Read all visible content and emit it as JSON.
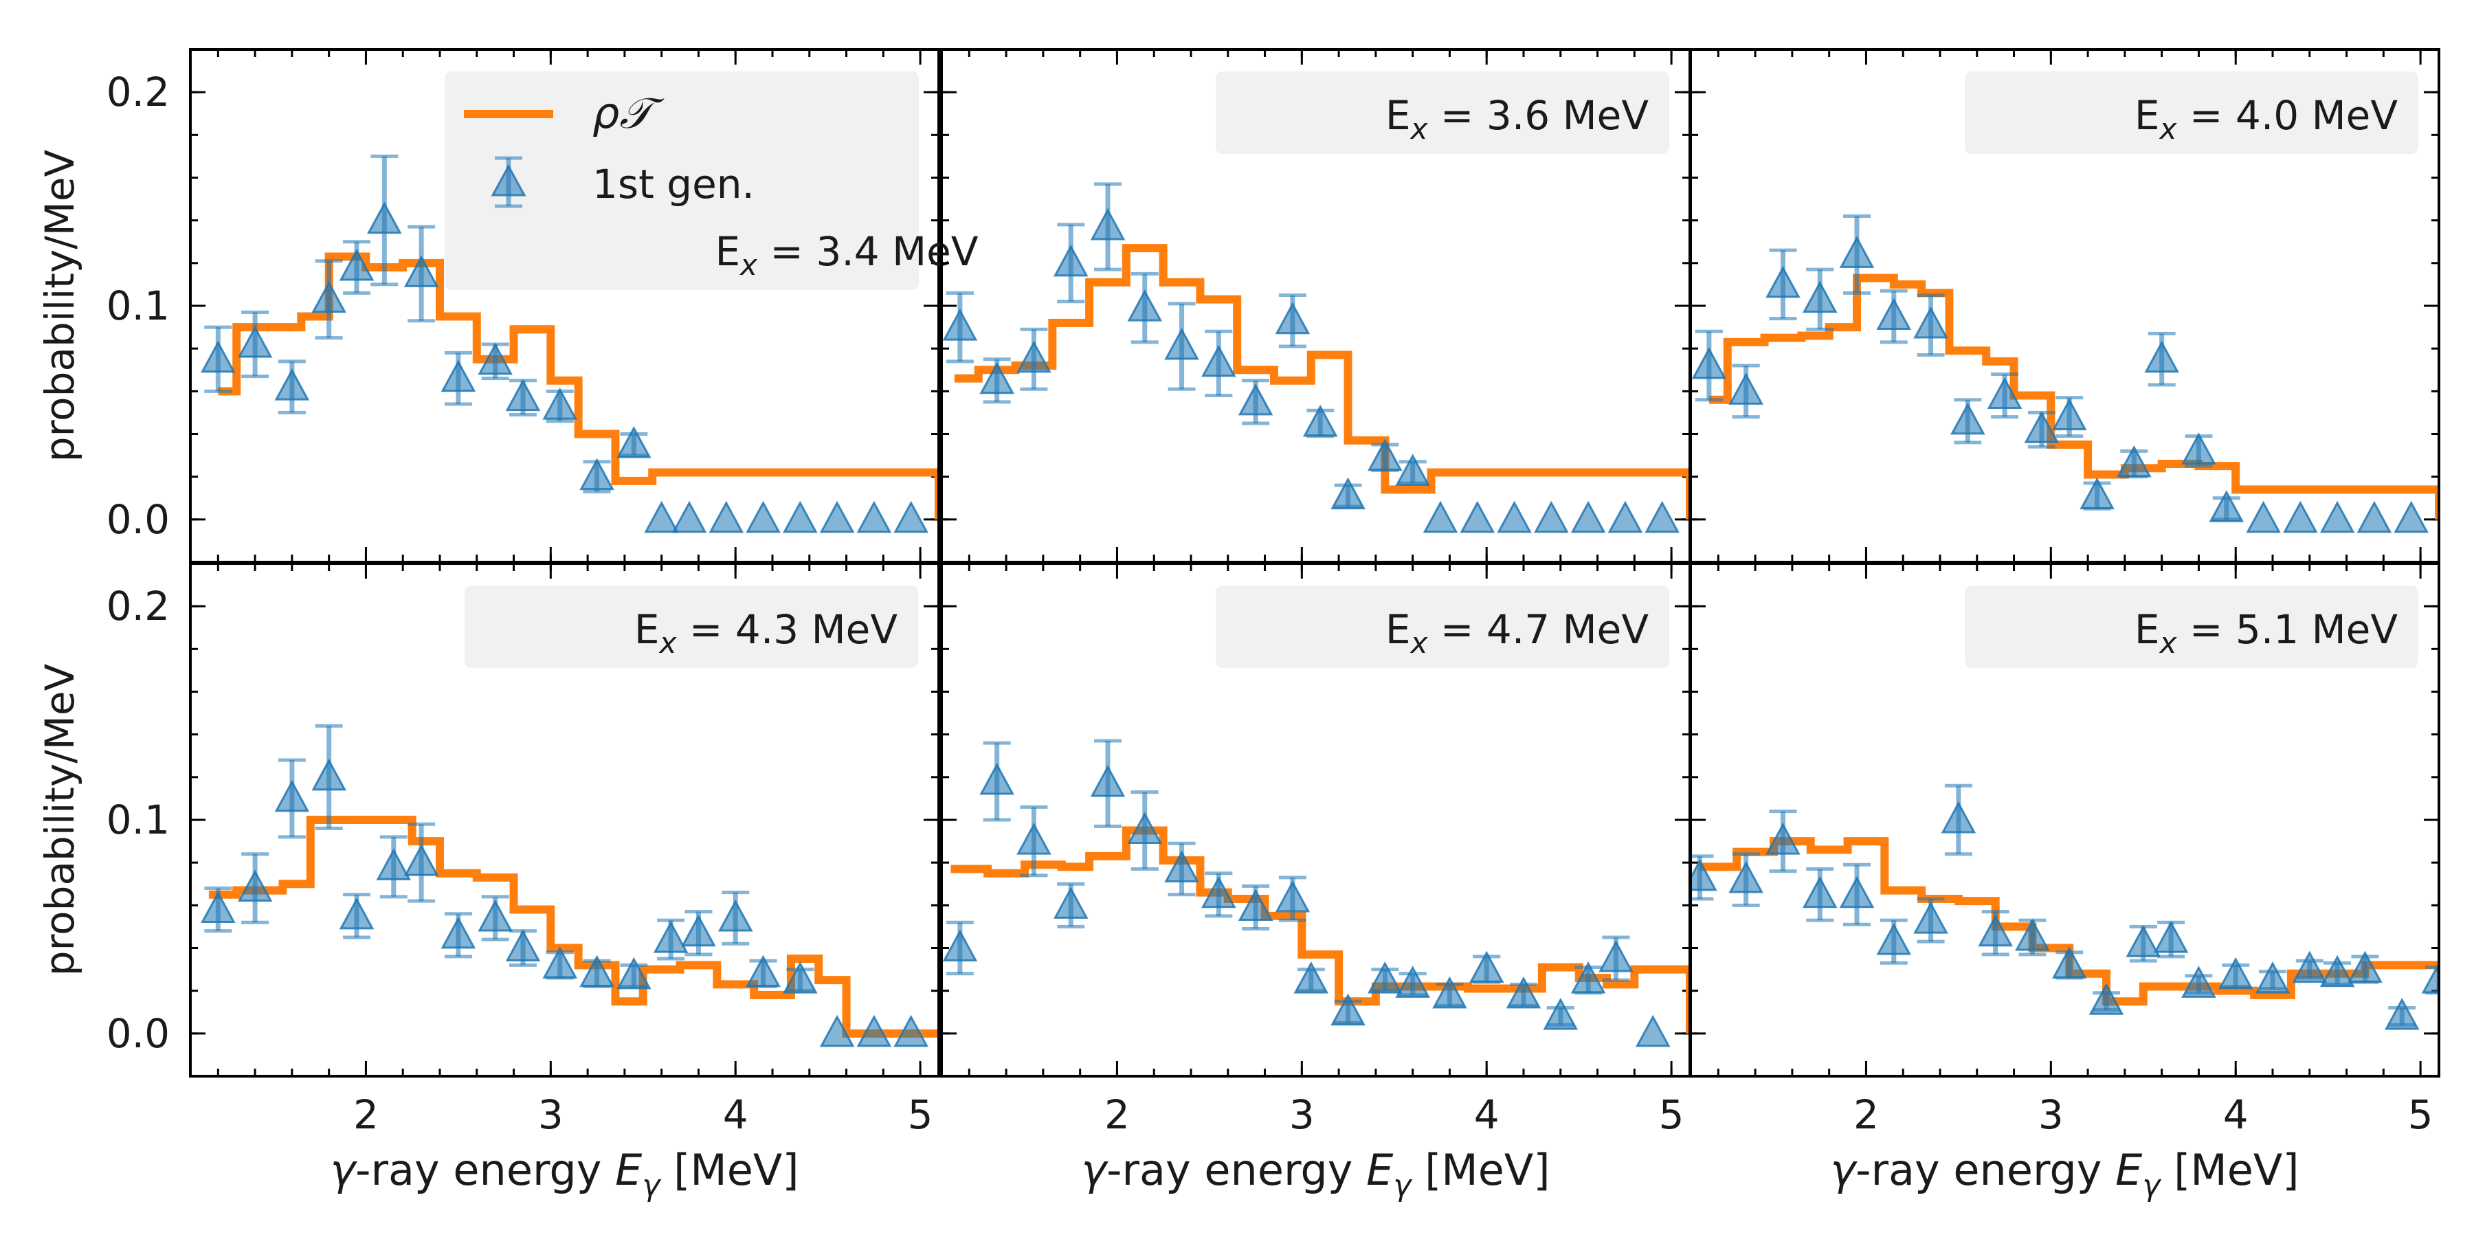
{
  "figure": {
    "colors": {
      "model": "#ff7f0e",
      "data": "#1f77b4",
      "legend_bg": "#f0f0f0",
      "axis": "#000000"
    },
    "ylabel_parts": [
      "probability/MeV"
    ],
    "xlabel_parts": [
      "γ",
      "-ray energy ",
      "E",
      "γ",
      " [MeV]"
    ],
    "legend": {
      "model_parts": [
        "ρ",
        "𝒯"
      ],
      "data_label": "1st gen."
    }
  },
  "chart_data": [
    {
      "type": "line",
      "ex_value": "3.4 MeV",
      "xlim": [
        1.05,
        5.1
      ],
      "ylim": [
        -0.02,
        0.22
      ],
      "xticks": [
        2,
        3,
        4,
        5
      ],
      "yticks": [
        0.0,
        0.1,
        0.2
      ],
      "ytick_labels": [
        "0.0",
        "0.1",
        "0.2"
      ],
      "series": [
        {
          "name": "ρ𝒯",
          "kind": "step",
          "x": [
            1.2,
            1.3,
            1.65,
            1.8,
            2.0,
            2.2,
            2.4,
            2.6,
            2.8,
            3.0,
            3.15,
            3.35,
            3.55,
            5.1
          ],
          "y": [
            0.06,
            0.09,
            0.095,
            0.123,
            0.118,
            0.12,
            0.095,
            0.075,
            0.089,
            0.065,
            0.04,
            0.018,
            0.022,
            0.0
          ]
        },
        {
          "name": "1st gen.",
          "kind": "errorbar",
          "x": [
            1.2,
            1.4,
            1.6,
            1.8,
            1.95,
            2.1,
            2.3,
            2.5,
            2.7,
            2.85,
            3.05,
            3.25,
            3.45,
            3.6,
            3.75,
            3.95,
            4.15,
            4.35,
            4.55,
            4.75,
            4.95
          ],
          "y": [
            0.075,
            0.082,
            0.062,
            0.103,
            0.118,
            0.14,
            0.115,
            0.066,
            0.074,
            0.057,
            0.053,
            0.02,
            0.035,
            0.0,
            0.0,
            0.0,
            0.0,
            0.0,
            0.0,
            0.0,
            0.0
          ],
          "err": [
            0.015,
            0.015,
            0.012,
            0.018,
            0.012,
            0.03,
            0.022,
            0.012,
            0.008,
            0.008,
            0.007,
            0.007,
            0.005,
            0,
            0,
            0,
            0,
            0,
            0,
            0,
            0
          ]
        }
      ]
    },
    {
      "type": "line",
      "ex_value": "3.6 MeV",
      "xlim": [
        1.05,
        5.1
      ],
      "ylim": [
        -0.02,
        0.22
      ],
      "xticks": [
        2,
        3,
        4,
        5
      ],
      "yticks": [
        0.0,
        0.1,
        0.2
      ],
      "ytick_labels": [
        "0.0",
        "0.1",
        "0.2"
      ],
      "series": [
        {
          "name": "ρ𝒯",
          "kind": "step",
          "x": [
            1.12,
            1.25,
            1.45,
            1.65,
            1.85,
            2.05,
            2.25,
            2.45,
            2.65,
            2.85,
            3.05,
            3.25,
            3.45,
            3.7,
            5.1
          ],
          "y": [
            0.066,
            0.07,
            0.072,
            0.092,
            0.111,
            0.127,
            0.111,
            0.103,
            0.07,
            0.065,
            0.077,
            0.037,
            0.014,
            0.022,
            0.0
          ]
        },
        {
          "name": "1st gen.",
          "kind": "errorbar",
          "x": [
            1.15,
            1.35,
            1.55,
            1.75,
            1.95,
            2.15,
            2.35,
            2.55,
            2.75,
            2.95,
            3.1,
            3.25,
            3.45,
            3.6,
            3.75,
            3.95,
            4.15,
            4.35,
            4.55,
            4.75,
            4.95
          ],
          "y": [
            0.09,
            0.065,
            0.075,
            0.12,
            0.137,
            0.099,
            0.081,
            0.073,
            0.055,
            0.093,
            0.045,
            0.011,
            0.029,
            0.022,
            0.0,
            0.0,
            0.0,
            0.0,
            0.0,
            0.0,
            0.0
          ],
          "err": [
            0.016,
            0.01,
            0.014,
            0.018,
            0.02,
            0.016,
            0.02,
            0.015,
            0.01,
            0.012,
            0.006,
            0.005,
            0.006,
            0.005,
            0,
            0,
            0,
            0,
            0,
            0,
            0
          ]
        }
      ]
    },
    {
      "type": "line",
      "ex_value": "4.0 MeV",
      "xlim": [
        1.05,
        5.1
      ],
      "ylim": [
        -0.02,
        0.22
      ],
      "xticks": [
        2,
        3,
        4,
        5
      ],
      "yticks": [
        0.0,
        0.1,
        0.2
      ],
      "ytick_labels": [
        "0.0",
        "0.1",
        "0.2"
      ],
      "series": [
        {
          "name": "ρ𝒯",
          "kind": "step",
          "x": [
            1.15,
            1.25,
            1.45,
            1.65,
            1.8,
            1.95,
            2.15,
            2.3,
            2.45,
            2.65,
            2.8,
            3.0,
            3.2,
            3.4,
            3.6,
            3.8,
            4.0,
            5.1
          ],
          "y": [
            0.056,
            0.083,
            0.085,
            0.086,
            0.09,
            0.113,
            0.11,
            0.106,
            0.079,
            0.074,
            0.058,
            0.035,
            0.021,
            0.024,
            0.026,
            0.025,
            0.014,
            0.0
          ]
        },
        {
          "name": "1st gen.",
          "kind": "errorbar",
          "x": [
            1.15,
            1.35,
            1.55,
            1.75,
            1.95,
            2.15,
            2.35,
            2.55,
            2.75,
            2.95,
            3.1,
            3.25,
            3.45,
            3.6,
            3.8,
            3.95,
            4.15,
            4.35,
            4.55,
            4.75,
            4.95
          ],
          "y": [
            0.072,
            0.06,
            0.11,
            0.103,
            0.124,
            0.095,
            0.091,
            0.046,
            0.058,
            0.042,
            0.048,
            0.011,
            0.026,
            0.075,
            0.032,
            0.005,
            0.0,
            0.0,
            0.0,
            0.0,
            0.0
          ],
          "err": [
            0.016,
            0.012,
            0.016,
            0.014,
            0.018,
            0.012,
            0.014,
            0.01,
            0.01,
            0.008,
            0.009,
            0.006,
            0.006,
            0.012,
            0.007,
            0.005,
            0,
            0,
            0,
            0,
            0
          ]
        }
      ]
    },
    {
      "type": "line",
      "ex_value": "4.3 MeV",
      "xlim": [
        1.05,
        5.1
      ],
      "ylim": [
        -0.02,
        0.22
      ],
      "xticks": [
        2,
        3,
        4,
        5
      ],
      "yticks": [
        0.0,
        0.1,
        0.2
      ],
      "ytick_labels": [
        "0.0",
        "0.1",
        "0.2"
      ],
      "series": [
        {
          "name": "ρ𝒯",
          "kind": "step",
          "x": [
            1.15,
            1.3,
            1.55,
            1.7,
            1.9,
            2.05,
            2.25,
            2.4,
            2.6,
            2.8,
            3.0,
            3.15,
            3.35,
            3.5,
            3.7,
            3.9,
            4.1,
            4.3,
            4.45,
            4.6,
            5.1
          ],
          "y": [
            0.065,
            0.067,
            0.07,
            0.1,
            0.1,
            0.1,
            0.09,
            0.075,
            0.073,
            0.058,
            0.04,
            0.032,
            0.015,
            0.03,
            0.032,
            0.023,
            0.018,
            0.035,
            0.025,
            0.0,
            0.0
          ]
        },
        {
          "name": "1st gen.",
          "kind": "errorbar",
          "x": [
            1.2,
            1.4,
            1.6,
            1.8,
            1.95,
            2.15,
            2.3,
            2.5,
            2.7,
            2.85,
            3.05,
            3.25,
            3.45,
            3.65,
            3.8,
            4.0,
            4.15,
            4.35,
            4.55,
            4.75,
            4.95
          ],
          "y": [
            0.058,
            0.068,
            0.11,
            0.12,
            0.055,
            0.078,
            0.08,
            0.046,
            0.054,
            0.04,
            0.032,
            0.028,
            0.027,
            0.044,
            0.047,
            0.054,
            0.028,
            0.025,
            0.0,
            0.0,
            0.0
          ],
          "err": [
            0.01,
            0.016,
            0.018,
            0.024,
            0.01,
            0.014,
            0.018,
            0.01,
            0.01,
            0.008,
            0.006,
            0.006,
            0.005,
            0.009,
            0.01,
            0.012,
            0.006,
            0.005,
            0,
            0,
            0
          ]
        }
      ]
    },
    {
      "type": "line",
      "ex_value": "4.7 MeV",
      "xlim": [
        1.05,
        5.1
      ],
      "ylim": [
        -0.02,
        0.22
      ],
      "xticks": [
        2,
        3,
        4,
        5
      ],
      "yticks": [
        0.0,
        0.1,
        0.2
      ],
      "ytick_labels": [
        "0.0",
        "0.1",
        "0.2"
      ],
      "series": [
        {
          "name": "ρ𝒯",
          "kind": "step",
          "x": [
            1.1,
            1.3,
            1.5,
            1.7,
            1.85,
            2.05,
            2.25,
            2.45,
            2.6,
            2.8,
            3.0,
            3.2,
            3.4,
            3.6,
            3.9,
            4.1,
            4.3,
            4.5,
            4.65,
            4.8,
            5.1
          ],
          "y": [
            0.077,
            0.075,
            0.079,
            0.078,
            0.083,
            0.095,
            0.081,
            0.066,
            0.063,
            0.055,
            0.037,
            0.015,
            0.022,
            0.022,
            0.021,
            0.021,
            0.031,
            0.026,
            0.023,
            0.03,
            0.0
          ]
        },
        {
          "name": "1st gen.",
          "kind": "errorbar",
          "x": [
            1.15,
            1.35,
            1.55,
            1.75,
            1.95,
            2.15,
            2.35,
            2.55,
            2.75,
            2.95,
            3.05,
            3.25,
            3.45,
            3.6,
            3.8,
            4.0,
            4.2,
            4.4,
            4.55,
            4.7,
            4.9
          ],
          "y": [
            0.04,
            0.118,
            0.09,
            0.06,
            0.117,
            0.095,
            0.077,
            0.065,
            0.059,
            0.063,
            0.025,
            0.01,
            0.025,
            0.023,
            0.018,
            0.03,
            0.018,
            0.008,
            0.025,
            0.035,
            0.0
          ],
          "err": [
            0.012,
            0.018,
            0.016,
            0.01,
            0.02,
            0.018,
            0.012,
            0.01,
            0.01,
            0.01,
            0.005,
            0.005,
            0.005,
            0.005,
            0.005,
            0.006,
            0.005,
            0.004,
            0.006,
            0.01,
            0
          ]
        }
      ]
    },
    {
      "type": "line",
      "ex_value": "5.1 MeV",
      "xlim": [
        1.05,
        5.1
      ],
      "ylim": [
        -0.02,
        0.22
      ],
      "xticks": [
        2,
        3,
        4,
        5
      ],
      "yticks": [
        0.0,
        0.1,
        0.2
      ],
      "ytick_labels": [
        "0.0",
        "0.1",
        "0.2"
      ],
      "series": [
        {
          "name": "ρ𝒯",
          "kind": "step",
          "x": [
            1.1,
            1.3,
            1.5,
            1.7,
            1.9,
            2.1,
            2.3,
            2.5,
            2.7,
            2.9,
            3.1,
            3.3,
            3.5,
            3.7,
            3.9,
            4.1,
            4.3,
            4.5,
            4.7,
            4.9,
            5.1
          ],
          "y": [
            0.078,
            0.085,
            0.09,
            0.086,
            0.09,
            0.067,
            0.063,
            0.062,
            0.05,
            0.04,
            0.028,
            0.015,
            0.022,
            0.022,
            0.02,
            0.018,
            0.028,
            0.028,
            0.032,
            0.032,
            0.029
          ]
        },
        {
          "name": "1st gen.",
          "kind": "errorbar",
          "x": [
            1.1,
            1.35,
            1.55,
            1.75,
            1.95,
            2.15,
            2.35,
            2.5,
            2.7,
            2.9,
            3.1,
            3.3,
            3.5,
            3.65,
            3.8,
            4.0,
            4.2,
            4.4,
            4.55,
            4.7,
            4.9,
            5.1
          ],
          "y": [
            0.073,
            0.072,
            0.09,
            0.065,
            0.065,
            0.043,
            0.053,
            0.1,
            0.047,
            0.045,
            0.032,
            0.015,
            0.042,
            0.044,
            0.023,
            0.027,
            0.025,
            0.03,
            0.028,
            0.03,
            0.008,
            0.025
          ],
          "err": [
            0.01,
            0.012,
            0.014,
            0.012,
            0.014,
            0.01,
            0.01,
            0.016,
            0.01,
            0.008,
            0.006,
            0.004,
            0.008,
            0.008,
            0.004,
            0.005,
            0.004,
            0.004,
            0.005,
            0.006,
            0.004,
            0.006
          ]
        }
      ]
    }
  ]
}
